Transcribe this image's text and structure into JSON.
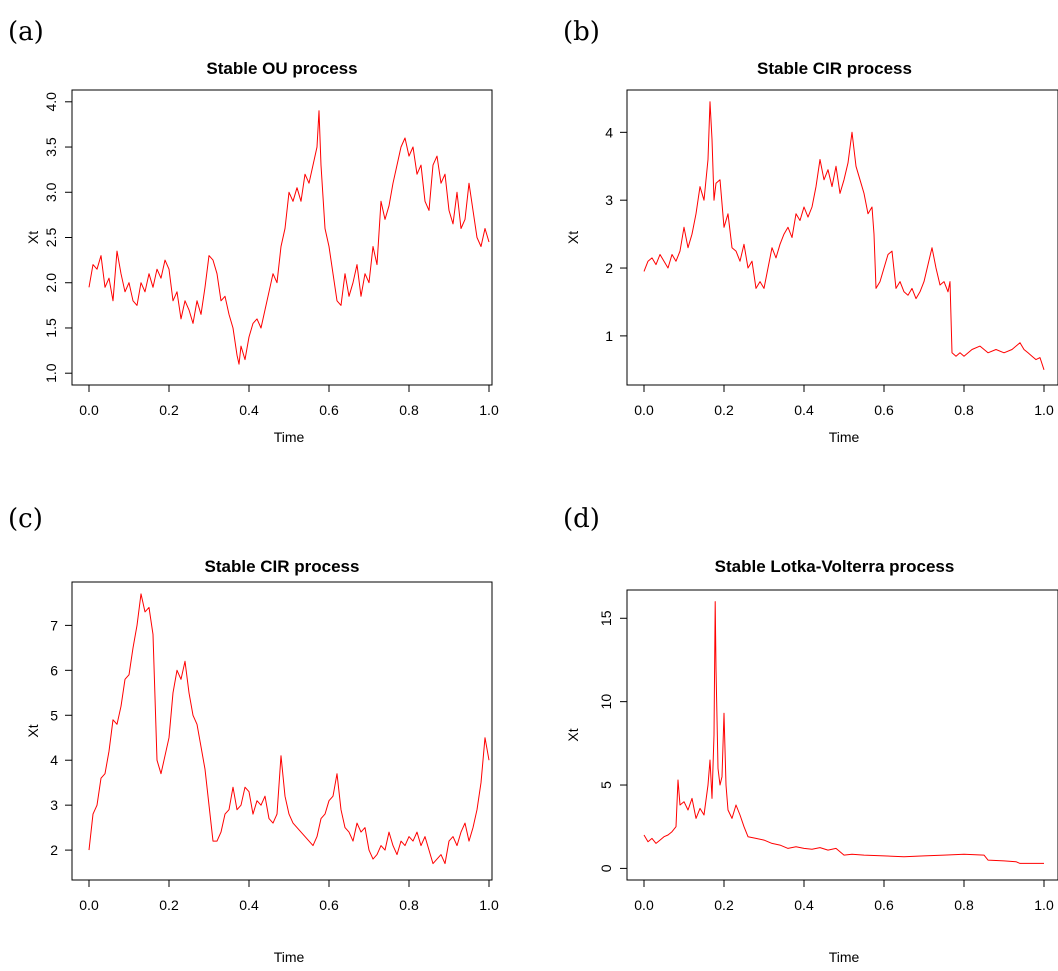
{
  "chart_data": [
    {
      "type": "line",
      "panel_label": "(a)",
      "title": "Stable OU process",
      "xlabel": "Time",
      "ylabel": "Xt",
      "xlim": [
        0,
        1
      ],
      "ylim": [
        1.0,
        4.0
      ],
      "xticks": [
        0,
        0.2,
        0.4,
        0.6,
        0.8,
        1.0
      ],
      "xtick_labels": [
        "0.0",
        "0.2",
        "0.4",
        "0.6",
        "0.8",
        "1.0"
      ],
      "yticks": [
        1.0,
        1.5,
        2.0,
        2.5,
        3.0,
        3.5,
        4.0
      ],
      "ytick_labels": [
        "1.0",
        "1.5",
        "2.0",
        "2.5",
        "3.0",
        "3.5",
        "4.0"
      ],
      "y_tick_rotated": true,
      "grid": false,
      "color": "#ff0000",
      "x": [
        0,
        0.01,
        0.02,
        0.03,
        0.04,
        0.05,
        0.06,
        0.07,
        0.08,
        0.09,
        0.1,
        0.11,
        0.12,
        0.13,
        0.14,
        0.15,
        0.16,
        0.17,
        0.18,
        0.19,
        0.2,
        0.21,
        0.22,
        0.23,
        0.24,
        0.25,
        0.26,
        0.27,
        0.28,
        0.29,
        0.3,
        0.31,
        0.32,
        0.33,
        0.34,
        0.35,
        0.36,
        0.37,
        0.375,
        0.38,
        0.39,
        0.4,
        0.41,
        0.42,
        0.43,
        0.44,
        0.45,
        0.46,
        0.47,
        0.48,
        0.49,
        0.5,
        0.51,
        0.52,
        0.53,
        0.54,
        0.55,
        0.56,
        0.57,
        0.575,
        0.58,
        0.59,
        0.6,
        0.61,
        0.62,
        0.63,
        0.64,
        0.65,
        0.66,
        0.67,
        0.68,
        0.69,
        0.7,
        0.71,
        0.72,
        0.73,
        0.74,
        0.75,
        0.76,
        0.77,
        0.78,
        0.79,
        0.8,
        0.81,
        0.82,
        0.83,
        0.84,
        0.85,
        0.86,
        0.87,
        0.88,
        0.89,
        0.9,
        0.91,
        0.92,
        0.93,
        0.94,
        0.95,
        0.96,
        0.97,
        0.98,
        0.99,
        1.0
      ],
      "values": [
        1.95,
        2.2,
        2.15,
        2.3,
        1.95,
        2.05,
        1.8,
        2.35,
        2.1,
        1.9,
        2.0,
        1.8,
        1.75,
        2.0,
        1.9,
        2.1,
        1.95,
        2.15,
        2.05,
        2.25,
        2.15,
        1.8,
        1.9,
        1.6,
        1.8,
        1.7,
        1.55,
        1.8,
        1.65,
        1.95,
        2.3,
        2.25,
        2.1,
        1.8,
        1.85,
        1.65,
        1.5,
        1.2,
        1.1,
        1.3,
        1.15,
        1.4,
        1.55,
        1.6,
        1.5,
        1.7,
        1.9,
        2.1,
        2.0,
        2.4,
        2.6,
        3.0,
        2.9,
        3.05,
        2.9,
        3.2,
        3.1,
        3.3,
        3.5,
        3.9,
        3.3,
        2.6,
        2.4,
        2.1,
        1.8,
        1.75,
        2.1,
        1.85,
        2.0,
        2.2,
        1.85,
        2.1,
        2.0,
        2.4,
        2.2,
        2.9,
        2.7,
        2.85,
        3.1,
        3.3,
        3.5,
        3.6,
        3.4,
        3.5,
        3.2,
        3.3,
        2.9,
        2.8,
        3.3,
        3.4,
        3.1,
        3.2,
        2.8,
        2.65,
        3.0,
        2.6,
        2.7,
        3.1,
        2.8,
        2.5,
        2.4,
        2.6,
        2.45
      ]
    },
    {
      "type": "line",
      "panel_label": "(b)",
      "title": "Stable CIR process",
      "xlabel": "Time",
      "ylabel": "Xt",
      "xlim": [
        0,
        1
      ],
      "ylim": [
        0.45,
        4.45
      ],
      "xticks": [
        0,
        0.2,
        0.4,
        0.6,
        0.8,
        1.0
      ],
      "xtick_labels": [
        "0.0",
        "0.2",
        "0.4",
        "0.6",
        "0.8",
        "1.0"
      ],
      "yticks": [
        1,
        2,
        3,
        4
      ],
      "ytick_labels": [
        "1",
        "2",
        "3",
        "4"
      ],
      "y_tick_rotated": false,
      "grid": false,
      "color": "#ff0000",
      "x": [
        0,
        0.01,
        0.02,
        0.03,
        0.04,
        0.05,
        0.06,
        0.07,
        0.08,
        0.09,
        0.1,
        0.11,
        0.12,
        0.13,
        0.14,
        0.15,
        0.16,
        0.165,
        0.17,
        0.175,
        0.18,
        0.19,
        0.2,
        0.21,
        0.22,
        0.23,
        0.24,
        0.25,
        0.26,
        0.27,
        0.28,
        0.29,
        0.3,
        0.31,
        0.32,
        0.33,
        0.34,
        0.35,
        0.36,
        0.37,
        0.38,
        0.39,
        0.4,
        0.41,
        0.42,
        0.43,
        0.44,
        0.45,
        0.46,
        0.47,
        0.48,
        0.49,
        0.5,
        0.51,
        0.52,
        0.53,
        0.54,
        0.55,
        0.56,
        0.57,
        0.575,
        0.58,
        0.59,
        0.6,
        0.61,
        0.62,
        0.63,
        0.64,
        0.65,
        0.66,
        0.67,
        0.68,
        0.69,
        0.7,
        0.71,
        0.72,
        0.73,
        0.74,
        0.75,
        0.76,
        0.765,
        0.77,
        0.78,
        0.79,
        0.8,
        0.82,
        0.84,
        0.86,
        0.88,
        0.9,
        0.92,
        0.94,
        0.95,
        0.96,
        0.97,
        0.98,
        0.99,
        1.0
      ],
      "values": [
        1.95,
        2.1,
        2.15,
        2.05,
        2.2,
        2.1,
        2.0,
        2.2,
        2.1,
        2.25,
        2.6,
        2.3,
        2.5,
        2.8,
        3.2,
        3.0,
        3.6,
        4.45,
        3.9,
        3.0,
        3.25,
        3.3,
        2.6,
        2.8,
        2.3,
        2.25,
        2.1,
        2.35,
        2.0,
        2.1,
        1.7,
        1.8,
        1.7,
        2.0,
        2.3,
        2.15,
        2.35,
        2.5,
        2.6,
        2.45,
        2.8,
        2.7,
        2.9,
        2.75,
        2.9,
        3.2,
        3.6,
        3.3,
        3.45,
        3.2,
        3.5,
        3.1,
        3.3,
        3.55,
        4.0,
        3.5,
        3.3,
        3.1,
        2.8,
        2.9,
        2.5,
        1.7,
        1.8,
        2.0,
        2.2,
        2.25,
        1.7,
        1.8,
        1.65,
        1.6,
        1.7,
        1.55,
        1.65,
        1.8,
        2.05,
        2.3,
        2.0,
        1.75,
        1.8,
        1.65,
        1.8,
        0.75,
        0.7,
        0.75,
        0.7,
        0.8,
        0.85,
        0.75,
        0.8,
        0.75,
        0.8,
        0.9,
        0.8,
        0.75,
        0.7,
        0.65,
        0.68,
        0.5
      ]
    },
    {
      "type": "line",
      "panel_label": "(c)",
      "title": "Stable CIR process",
      "xlabel": "Time",
      "ylabel": "Xt",
      "xlim": [
        0,
        1
      ],
      "ylim": [
        1.6,
        7.7
      ],
      "xticks": [
        0,
        0.2,
        0.4,
        0.6,
        0.8,
        1.0
      ],
      "xtick_labels": [
        "0.0",
        "0.2",
        "0.4",
        "0.6",
        "0.8",
        "1.0"
      ],
      "yticks": [
        2,
        3,
        4,
        5,
        6,
        7
      ],
      "ytick_labels": [
        "2",
        "3",
        "4",
        "5",
        "6",
        "7"
      ],
      "y_tick_rotated": false,
      "grid": false,
      "color": "#ff0000",
      "x": [
        0,
        0.01,
        0.02,
        0.03,
        0.04,
        0.05,
        0.06,
        0.07,
        0.08,
        0.09,
        0.1,
        0.11,
        0.12,
        0.13,
        0.14,
        0.15,
        0.16,
        0.17,
        0.18,
        0.19,
        0.2,
        0.21,
        0.22,
        0.23,
        0.24,
        0.25,
        0.26,
        0.27,
        0.28,
        0.29,
        0.3,
        0.31,
        0.32,
        0.33,
        0.34,
        0.35,
        0.36,
        0.37,
        0.38,
        0.39,
        0.4,
        0.41,
        0.42,
        0.43,
        0.44,
        0.45,
        0.46,
        0.47,
        0.48,
        0.49,
        0.5,
        0.51,
        0.52,
        0.53,
        0.54,
        0.55,
        0.56,
        0.57,
        0.58,
        0.59,
        0.6,
        0.61,
        0.62,
        0.63,
        0.64,
        0.65,
        0.66,
        0.67,
        0.68,
        0.69,
        0.7,
        0.71,
        0.72,
        0.73,
        0.74,
        0.75,
        0.76,
        0.77,
        0.78,
        0.79,
        0.8,
        0.81,
        0.82,
        0.83,
        0.84,
        0.85,
        0.86,
        0.87,
        0.88,
        0.89,
        0.9,
        0.91,
        0.92,
        0.93,
        0.94,
        0.95,
        0.96,
        0.97,
        0.98,
        0.99,
        1.0
      ],
      "values": [
        2.0,
        2.8,
        3.0,
        3.6,
        3.7,
        4.2,
        4.9,
        4.8,
        5.2,
        5.8,
        5.9,
        6.5,
        7.0,
        7.7,
        7.3,
        7.4,
        6.8,
        4.0,
        3.7,
        4.1,
        4.5,
        5.5,
        6.0,
        5.8,
        6.2,
        5.5,
        5.0,
        4.8,
        4.3,
        3.8,
        3.0,
        2.2,
        2.2,
        2.4,
        2.8,
        2.9,
        3.4,
        2.9,
        3.0,
        3.4,
        3.3,
        2.8,
        3.1,
        3.0,
        3.2,
        2.7,
        2.6,
        2.8,
        4.1,
        3.2,
        2.8,
        2.6,
        2.5,
        2.4,
        2.3,
        2.2,
        2.1,
        2.3,
        2.7,
        2.8,
        3.1,
        3.2,
        3.7,
        2.9,
        2.5,
        2.4,
        2.2,
        2.6,
        2.4,
        2.5,
        2.0,
        1.8,
        1.9,
        2.1,
        2.0,
        2.4,
        2.1,
        1.9,
        2.2,
        2.1,
        2.3,
        2.2,
        2.4,
        2.1,
        2.3,
        2.0,
        1.7,
        1.8,
        1.9,
        1.7,
        2.2,
        2.3,
        2.1,
        2.4,
        2.6,
        2.2,
        2.5,
        2.9,
        3.5,
        4.5,
        4.0
      ]
    },
    {
      "type": "line",
      "panel_label": "(d)",
      "title": "Stable Lotka-Volterra process",
      "xlabel": "Time",
      "ylabel": "Xt",
      "xlim": [
        0,
        1
      ],
      "ylim": [
        0,
        16
      ],
      "xticks": [
        0,
        0.2,
        0.4,
        0.6,
        0.8,
        1.0
      ],
      "xtick_labels": [
        "0.0",
        "0.2",
        "0.4",
        "0.6",
        "0.8",
        "1.0"
      ],
      "yticks": [
        0,
        5,
        10,
        15
      ],
      "ytick_labels": [
        "0",
        "5",
        "10",
        "15"
      ],
      "y_tick_rotated": true,
      "grid": false,
      "color": "#ff0000",
      "x": [
        0,
        0.01,
        0.02,
        0.03,
        0.04,
        0.05,
        0.06,
        0.07,
        0.08,
        0.085,
        0.09,
        0.1,
        0.11,
        0.12,
        0.13,
        0.14,
        0.15,
        0.16,
        0.165,
        0.17,
        0.175,
        0.178,
        0.18,
        0.185,
        0.19,
        0.195,
        0.2,
        0.205,
        0.21,
        0.22,
        0.23,
        0.24,
        0.25,
        0.26,
        0.28,
        0.3,
        0.32,
        0.34,
        0.36,
        0.38,
        0.4,
        0.42,
        0.44,
        0.46,
        0.48,
        0.5,
        0.52,
        0.55,
        0.6,
        0.65,
        0.7,
        0.75,
        0.8,
        0.85,
        0.86,
        0.9,
        0.93,
        0.94,
        0.97,
        1.0
      ],
      "values": [
        2.0,
        1.6,
        1.8,
        1.5,
        1.7,
        1.9,
        2.0,
        2.2,
        2.5,
        5.3,
        3.8,
        4.0,
        3.5,
        4.2,
        3.0,
        3.6,
        3.2,
        5.0,
        6.5,
        4.2,
        8.0,
        16.0,
        12.0,
        6.0,
        5.0,
        5.5,
        9.3,
        5.0,
        3.5,
        3.0,
        3.8,
        3.2,
        2.5,
        1.9,
        1.8,
        1.7,
        1.5,
        1.4,
        1.2,
        1.3,
        1.2,
        1.15,
        1.25,
        1.1,
        1.2,
        0.8,
        0.85,
        0.8,
        0.75,
        0.7,
        0.75,
        0.8,
        0.85,
        0.8,
        0.5,
        0.45,
        0.4,
        0.3,
        0.3,
        0.3
      ]
    }
  ]
}
